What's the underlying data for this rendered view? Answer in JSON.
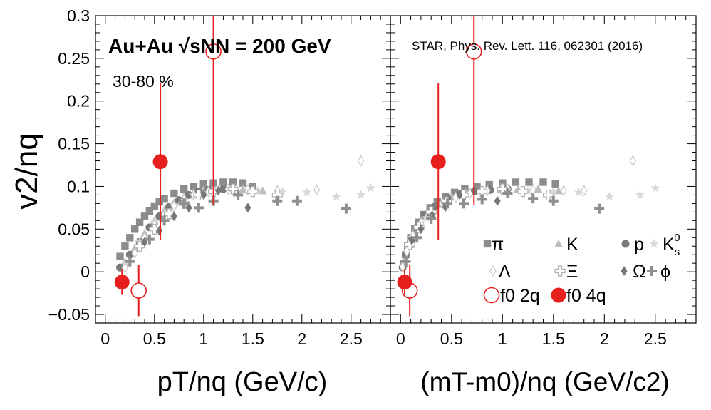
{
  "chart_data": [
    {
      "type": "scatter",
      "panel": "left",
      "title": "Au+Au √sNN = 200 GeV",
      "subtitle": "30-80 %",
      "xlabel": "pT/nq (GeV/c)",
      "ylabel": "v2/nq",
      "xlim": [
        -0.1,
        2.9
      ],
      "ylim": [
        -0.06,
        0.3
      ],
      "x_ticks": [
        "0",
        "0.5",
        "1",
        "1.5",
        "2",
        "2.5"
      ],
      "y_ticks": [
        "−0.05",
        "0",
        "0.05",
        "0.1",
        "0.15",
        "0.2",
        "0.25",
        "0.3"
      ],
      "grid": false,
      "series": [
        {
          "name": "π",
          "color": "#8c8c8c",
          "marker": "square",
          "points": [
            [
              0.15,
              0.018
            ],
            [
              0.2,
              0.03
            ],
            [
              0.25,
              0.04
            ],
            [
              0.3,
              0.05
            ],
            [
              0.35,
              0.058
            ],
            [
              0.4,
              0.065
            ],
            [
              0.45,
              0.071
            ],
            [
              0.5,
              0.077
            ],
            [
              0.55,
              0.082
            ],
            [
              0.6,
              0.086
            ],
            [
              0.7,
              0.092
            ],
            [
              0.8,
              0.097
            ],
            [
              0.9,
              0.1
            ],
            [
              1.0,
              0.103
            ],
            [
              1.1,
              0.104
            ],
            [
              1.2,
              0.105
            ],
            [
              1.3,
              0.105
            ],
            [
              1.4,
              0.104
            ],
            [
              1.5,
              0.1
            ]
          ]
        },
        {
          "name": "K",
          "color": "#bdbdbd",
          "marker": "triangle",
          "points": [
            [
              0.2,
              0.012
            ],
            [
              0.3,
              0.028
            ],
            [
              0.4,
              0.045
            ],
            [
              0.5,
              0.06
            ],
            [
              0.6,
              0.072
            ],
            [
              0.7,
              0.081
            ],
            [
              0.8,
              0.088
            ],
            [
              0.9,
              0.093
            ],
            [
              1.0,
              0.096
            ],
            [
              1.2,
              0.098
            ],
            [
              1.4,
              0.097
            ],
            [
              1.6,
              0.095
            ]
          ]
        },
        {
          "name": "p",
          "color": "#7a7a7a",
          "marker": "circle",
          "points": [
            [
              0.15,
              0.005
            ],
            [
              0.25,
              0.02
            ],
            [
              0.35,
              0.035
            ],
            [
              0.45,
              0.052
            ],
            [
              0.55,
              0.065
            ],
            [
              0.65,
              0.076
            ],
            [
              0.75,
              0.084
            ],
            [
              0.85,
              0.09
            ],
            [
              0.95,
              0.094
            ],
            [
              1.05,
              0.096
            ],
            [
              1.2,
              0.097
            ]
          ]
        },
        {
          "name": "K_s^0",
          "color": "#d9d9d9",
          "marker": "star",
          "points": [
            [
              0.2,
              0.01
            ],
            [
              0.35,
              0.035
            ],
            [
              0.5,
              0.058
            ],
            [
              0.7,
              0.078
            ],
            [
              0.9,
              0.09
            ],
            [
              1.1,
              0.095
            ],
            [
              1.3,
              0.096
            ],
            [
              1.55,
              0.095
            ],
            [
              1.8,
              0.094
            ],
            [
              2.05,
              0.093
            ],
            [
              2.35,
              0.088
            ],
            [
              2.6,
              0.09
            ],
            [
              2.7,
              0.098
            ]
          ]
        },
        {
          "name": "Λ",
          "color": "#c8c8c8",
          "marker": "open-diamond",
          "points": [
            [
              0.2,
              0.005
            ],
            [
              0.3,
              0.022
            ],
            [
              0.4,
              0.04
            ],
            [
              0.5,
              0.055
            ],
            [
              0.6,
              0.067
            ],
            [
              0.7,
              0.077
            ],
            [
              0.8,
              0.085
            ],
            [
              0.9,
              0.09
            ],
            [
              1.05,
              0.094
            ],
            [
              1.25,
              0.097
            ],
            [
              1.45,
              0.096
            ],
            [
              1.75,
              0.095
            ],
            [
              2.15,
              0.096
            ],
            [
              2.6,
              0.13
            ]
          ]
        },
        {
          "name": "Ξ",
          "color": "#b0b0b0",
          "marker": "open-cross",
          "points": [
            [
              0.35,
              0.03
            ],
            [
              0.5,
              0.05
            ],
            [
              0.65,
              0.068
            ],
            [
              0.8,
              0.08
            ],
            [
              0.95,
              0.09
            ],
            [
              1.1,
              0.094
            ],
            [
              1.3,
              0.097
            ],
            [
              1.5,
              0.094
            ],
            [
              1.75,
              0.09
            ]
          ]
        },
        {
          "name": "Ω",
          "color": "#777777",
          "marker": "diamond",
          "points": [
            [
              0.4,
              0.035
            ],
            [
              0.55,
              0.048
            ],
            [
              0.7,
              0.065
            ],
            [
              0.85,
              0.075
            ],
            [
              1.0,
              0.09
            ],
            [
              1.15,
              0.095
            ],
            [
              1.45,
              0.075
            ]
          ]
        },
        {
          "name": "ϕ",
          "color": "#8f8f8f",
          "marker": "cross",
          "points": [
            [
              0.25,
              0.012
            ],
            [
              0.45,
              0.038
            ],
            [
              0.6,
              0.06
            ],
            [
              0.8,
              0.08
            ],
            [
              0.95,
              0.075
            ],
            [
              1.1,
              0.083
            ],
            [
              1.35,
              0.09
            ],
            [
              1.75,
              0.083
            ],
            [
              1.95,
              0.083
            ],
            [
              2.45,
              0.074
            ]
          ]
        },
        {
          "name": "f0 2q",
          "color": "#e8201d",
          "marker": "open-circle-large",
          "points": [
            [
              0.34,
              -0.022,
              0.03
            ],
            [
              1.1,
              0.258,
              0.18
            ]
          ]
        },
        {
          "name": "f0 4q",
          "color": "#e8201d",
          "marker": "filled-circle-large",
          "points": [
            [
              0.17,
              -0.012,
              0.015
            ],
            [
              0.56,
              0.129,
              0.092
            ]
          ]
        }
      ]
    },
    {
      "type": "scatter",
      "panel": "right",
      "title": "STAR, Phys. Rev. Lett. 116, 062301 (2016)",
      "xlabel": "(mT-m0)/nq (GeV/c2)",
      "xlim": [
        -0.1,
        2.9
      ],
      "ylim": [
        -0.06,
        0.3
      ],
      "x_ticks": [
        "0",
        "0.5",
        "1",
        "1.5",
        "2",
        "2.5"
      ],
      "grid": false,
      "legend": "bottom-right",
      "series": [
        {
          "name": "π",
          "color": "#8c8c8c",
          "marker": "square",
          "points": [
            [
              0.03,
              0.01
            ],
            [
              0.05,
              0.02
            ],
            [
              0.07,
              0.03
            ],
            [
              0.1,
              0.04
            ],
            [
              0.14,
              0.05
            ],
            [
              0.18,
              0.058
            ],
            [
              0.23,
              0.067
            ],
            [
              0.29,
              0.075
            ],
            [
              0.36,
              0.082
            ],
            [
              0.44,
              0.088
            ],
            [
              0.53,
              0.093
            ],
            [
              0.63,
              0.097
            ],
            [
              0.75,
              0.1
            ],
            [
              0.87,
              0.102
            ],
            [
              1.0,
              0.104
            ],
            [
              1.13,
              0.105
            ],
            [
              1.26,
              0.105
            ],
            [
              1.4,
              0.105
            ],
            [
              1.52,
              0.103
            ]
          ]
        },
        {
          "name": "K",
          "color": "#bdbdbd",
          "marker": "triangle",
          "points": [
            [
              0.05,
              0.015
            ],
            [
              0.1,
              0.032
            ],
            [
              0.17,
              0.05
            ],
            [
              0.26,
              0.066
            ],
            [
              0.37,
              0.079
            ],
            [
              0.5,
              0.088
            ],
            [
              0.64,
              0.093
            ],
            [
              0.8,
              0.096
            ],
            [
              0.98,
              0.097
            ],
            [
              1.15,
              0.097
            ],
            [
              1.35,
              0.097
            ],
            [
              1.55,
              0.095
            ]
          ]
        },
        {
          "name": "p",
          "color": "#7a7a7a",
          "marker": "circle",
          "points": [
            [
              0.02,
              0.005
            ],
            [
              0.05,
              0.02
            ],
            [
              0.1,
              0.035
            ],
            [
              0.16,
              0.052
            ],
            [
              0.24,
              0.066
            ],
            [
              0.34,
              0.077
            ],
            [
              0.46,
              0.086
            ],
            [
              0.58,
              0.091
            ],
            [
              0.72,
              0.094
            ],
            [
              0.88,
              0.096
            ],
            [
              1.05,
              0.097
            ]
          ]
        },
        {
          "name": "K_s^0",
          "color": "#d9d9d9",
          "marker": "star",
          "points": [
            [
              0.04,
              0.012
            ],
            [
              0.12,
              0.04
            ],
            [
              0.25,
              0.063
            ],
            [
              0.42,
              0.08
            ],
            [
              0.6,
              0.09
            ],
            [
              0.8,
              0.095
            ],
            [
              1.0,
              0.096
            ],
            [
              1.25,
              0.095
            ],
            [
              1.5,
              0.094
            ],
            [
              1.75,
              0.093
            ],
            [
              2.05,
              0.088
            ],
            [
              2.35,
              0.09
            ],
            [
              2.5,
              0.098
            ]
          ]
        },
        {
          "name": "Λ",
          "color": "#c8c8c8",
          "marker": "open-diamond",
          "points": [
            [
              0.02,
              0.006
            ],
            [
              0.06,
              0.024
            ],
            [
              0.12,
              0.042
            ],
            [
              0.2,
              0.057
            ],
            [
              0.3,
              0.07
            ],
            [
              0.41,
              0.08
            ],
            [
              0.54,
              0.087
            ],
            [
              0.68,
              0.092
            ],
            [
              0.85,
              0.095
            ],
            [
              1.05,
              0.097
            ],
            [
              1.3,
              0.096
            ],
            [
              1.6,
              0.095
            ],
            [
              1.8,
              0.095
            ],
            [
              2.28,
              0.13
            ]
          ]
        },
        {
          "name": "Ξ",
          "color": "#b0b0b0",
          "marker": "open-cross",
          "points": [
            [
              0.09,
              0.032
            ],
            [
              0.18,
              0.052
            ],
            [
              0.3,
              0.07
            ],
            [
              0.45,
              0.082
            ],
            [
              0.62,
              0.09
            ],
            [
              0.8,
              0.094
            ],
            [
              1.0,
              0.097
            ],
            [
              1.2,
              0.094
            ],
            [
              1.45,
              0.09
            ]
          ]
        },
        {
          "name": "Ω",
          "color": "#777777",
          "marker": "diamond",
          "points": [
            [
              0.11,
              0.037
            ],
            [
              0.2,
              0.05
            ],
            [
              0.31,
              0.066
            ],
            [
              0.44,
              0.076
            ],
            [
              0.58,
              0.09
            ],
            [
              0.72,
              0.095
            ],
            [
              0.95,
              0.083
            ]
          ]
        },
        {
          "name": "ϕ",
          "color": "#8f8f8f",
          "marker": "cross",
          "points": [
            [
              0.05,
              0.012
            ],
            [
              0.16,
              0.04
            ],
            [
              0.3,
              0.062
            ],
            [
              0.46,
              0.08
            ],
            [
              0.62,
              0.08
            ],
            [
              0.8,
              0.085
            ],
            [
              1.05,
              0.092
            ],
            [
              1.3,
              0.086
            ],
            [
              1.5,
              0.083
            ],
            [
              1.95,
              0.074
            ]
          ]
        },
        {
          "name": "f0 2q",
          "color": "#e8201d",
          "marker": "open-circle-large",
          "points": [
            [
              0.09,
              -0.022,
              0.03
            ],
            [
              0.72,
              0.258,
              0.18
            ]
          ]
        },
        {
          "name": "f0 4q",
          "color": "#e8201d",
          "marker": "filled-circle-large",
          "points": [
            [
              0.04,
              -0.012,
              0.015
            ],
            [
              0.37,
              0.129,
              0.092
            ]
          ]
        }
      ]
    }
  ]
}
